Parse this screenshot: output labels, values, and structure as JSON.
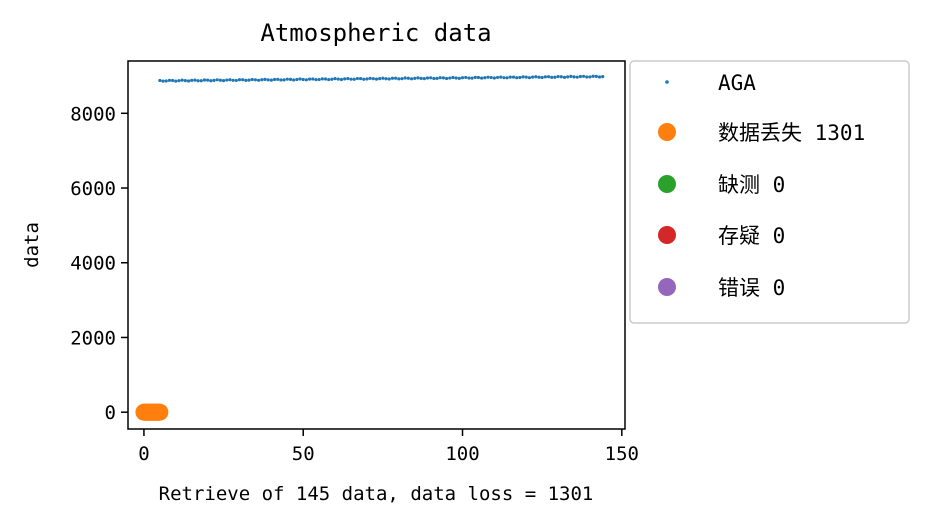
{
  "chart_data": {
    "type": "scatter",
    "title": "Atmospheric data",
    "xlabel": "Retrieve of 145 data, data loss = 1301",
    "ylabel": "data",
    "xlim": [
      -5,
      151
    ],
    "ylim": [
      -450,
      9400
    ],
    "xticks": [
      0,
      50,
      100,
      150
    ],
    "yticks": [
      0,
      2000,
      4000,
      6000,
      8000
    ],
    "grid": false,
    "legend_placement": "outside right, top",
    "series": [
      {
        "name": "AGA",
        "marker": "dot",
        "color": "#1f77b4",
        "x_start": 5,
        "x_end": 144,
        "x_step": 1,
        "y_start": 8870,
        "y_end": 8985,
        "y_jitter": 12
      },
      {
        "name": "数据丢失 1301",
        "marker": "circle",
        "color": "#ff7f0e",
        "x_start": 0,
        "x_end": 5,
        "x_step": 0.25,
        "y_value": 0
      },
      {
        "name": "缺测 0",
        "marker": "circle",
        "color": "#2ca02c",
        "points": []
      },
      {
        "name": "存疑 0",
        "marker": "circle",
        "color": "#d62728",
        "points": []
      },
      {
        "name": "错误 0",
        "marker": "circle",
        "color": "#9467bd",
        "points": []
      }
    ]
  }
}
